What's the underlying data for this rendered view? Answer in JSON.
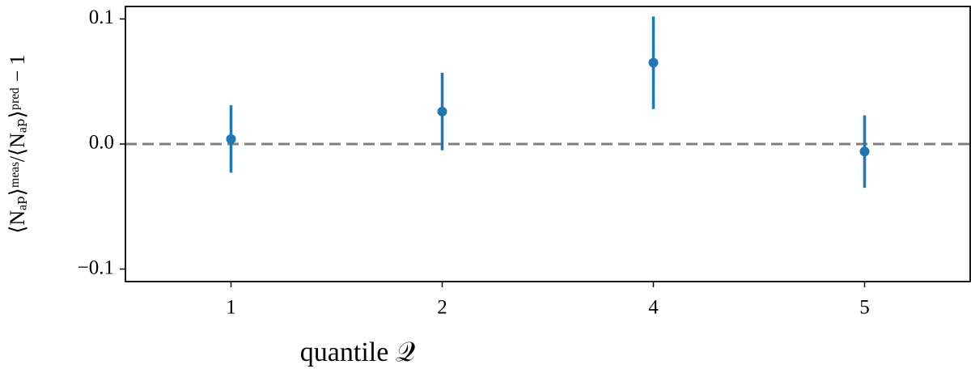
{
  "chart_data": {
    "type": "errorbar",
    "xlabel": "quantile 𝒬",
    "ylabel": "⟨Nₐₚ⟩ᵐᵉᵃˢ/⟨Nₐₚ⟩ᵖʳᵉᵈ − 1",
    "categories": [
      "1",
      "2",
      "4",
      "5"
    ],
    "values": [
      0.004,
      0.026,
      0.065,
      -0.006
    ],
    "errors": [
      0.027,
      0.031,
      0.037,
      0.029
    ],
    "color": "#1f77b4",
    "ylim": [
      -0.11,
      0.11
    ],
    "yticks": [
      0.1,
      {
        "value": 0,
        "label": "0.0"
      },
      {
        "value": -0.1,
        "label": "−0.1"
      }
    ],
    "hline": {
      "value": 0,
      "color": "#7f7f7f"
    }
  }
}
